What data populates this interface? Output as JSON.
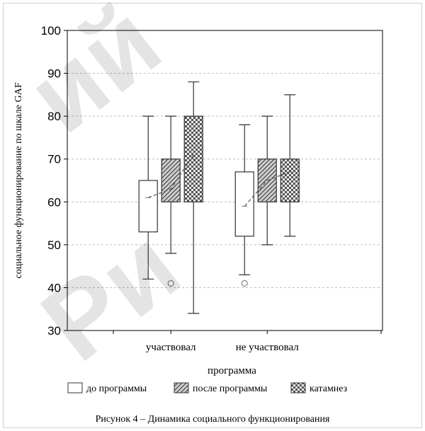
{
  "chart_data": {
    "type": "boxplot",
    "ylabel": "социальное функционирование по шкале GAF",
    "xlabel": "программа",
    "ylim": [
      30,
      100
    ],
    "yticks": [
      30,
      40,
      50,
      60,
      70,
      80,
      90,
      100
    ],
    "grid": "horizontal dashed",
    "categories": [
      "участвовал",
      "не участвовал"
    ],
    "series": [
      {
        "name": "до программы",
        "pattern": "blank",
        "boxes": [
          {
            "whisker_low": 42,
            "q1": 53,
            "median": 61,
            "q3": 65,
            "whisker_high": 80,
            "mean": 61,
            "outliers": []
          },
          {
            "whisker_low": 43,
            "q1": 52,
            "median": 59,
            "q3": 67,
            "whisker_high": 78,
            "mean": 59,
            "outliers": [
              41
            ]
          }
        ]
      },
      {
        "name": "после программы",
        "pattern": "hatched",
        "boxes": [
          {
            "whisker_low": 48,
            "q1": 60,
            "median": 63,
            "q3": 70,
            "whisker_high": 80,
            "mean": 63,
            "outliers": [
              41
            ]
          },
          {
            "whisker_low": 50,
            "q1": 60,
            "median": 65,
            "q3": 70,
            "whisker_high": 80,
            "mean": 65,
            "outliers": []
          }
        ]
      },
      {
        "name": "катамнез",
        "pattern": "checkered",
        "boxes": [
          {
            "whisker_low": 34,
            "q1": 60,
            "median": 70,
            "q3": 80,
            "whisker_high": 88,
            "mean": 71,
            "outliers": []
          },
          {
            "whisker_low": 52,
            "q1": 60,
            "median": 67,
            "q3": 70,
            "whisker_high": 85,
            "mean": 67,
            "outliers": []
          }
        ]
      }
    ],
    "legend_position": "bottom",
    "caption": "Рисунок 4 – Динамика социального функционирования"
  },
  "watermark": {
    "line1": "ий",
    "line2": "Ри"
  },
  "colors": {
    "box_edge": "#333333",
    "grid": "#bbbbbb",
    "mean_line": "#555555",
    "pattern": "#444444",
    "outlier": "#888888"
  }
}
